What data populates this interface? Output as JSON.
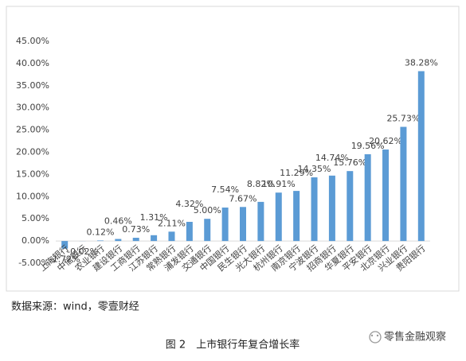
{
  "chart_data": {
    "type": "bar",
    "categories": [
      "上海银行",
      "中信银行",
      "农业银行",
      "建设银行",
      "工商银行",
      "江苏银行",
      "常熟银行",
      "浦发银行",
      "交通银行",
      "中国银行",
      "民生银行",
      "光大银行",
      "杭州银行",
      "南京银行",
      "宁波银行",
      "招商银行",
      "华夏银行",
      "平安银行",
      "北京银行",
      "兴业银行",
      "贵阳银行"
    ],
    "values": [
      -1.72,
      -0.02,
      0.12,
      0.46,
      0.73,
      1.31,
      2.11,
      4.32,
      5.0,
      7.54,
      7.67,
      8.82,
      10.91,
      11.29,
      14.35,
      14.74,
      15.76,
      19.56,
      20.62,
      25.73,
      38.28
    ],
    "value_labels": [
      "-1.72%",
      "-0.02%",
      "0.12%",
      "0.46%",
      "0.73%",
      "1.31%",
      "2.11%",
      "4.32%",
      "5.00%",
      "7.54%",
      "7.67%",
      "8.82%",
      "10.91%",
      "11.29%",
      "14.35%",
      "14.74%",
      "15.76%",
      "19.56%",
      "20.62%",
      "25.73%",
      "38.28%"
    ],
    "color": "#5b9bd5",
    "ylim": [
      -5,
      45
    ],
    "yticks": [
      {
        "value": -5,
        "label": "-5.00%"
      },
      {
        "value": 0,
        "label": "0.00%"
      },
      {
        "value": 5,
        "label": "5.00%"
      },
      {
        "value": 10,
        "label": "10.00%"
      },
      {
        "value": 15,
        "label": "15.00%"
      },
      {
        "value": 20,
        "label": "20.00%"
      },
      {
        "value": 25,
        "label": "25.00%"
      },
      {
        "value": 30,
        "label": "30.00%"
      },
      {
        "value": 35,
        "label": "35.00%"
      },
      {
        "value": 40,
        "label": "40.00%"
      },
      {
        "value": 45,
        "label": "45.00%"
      }
    ],
    "grid": false
  },
  "source": "数据来源：wind，零壹财经",
  "caption": "图 2　上市银行年复合增长率",
  "watermark": "零售金融观察"
}
